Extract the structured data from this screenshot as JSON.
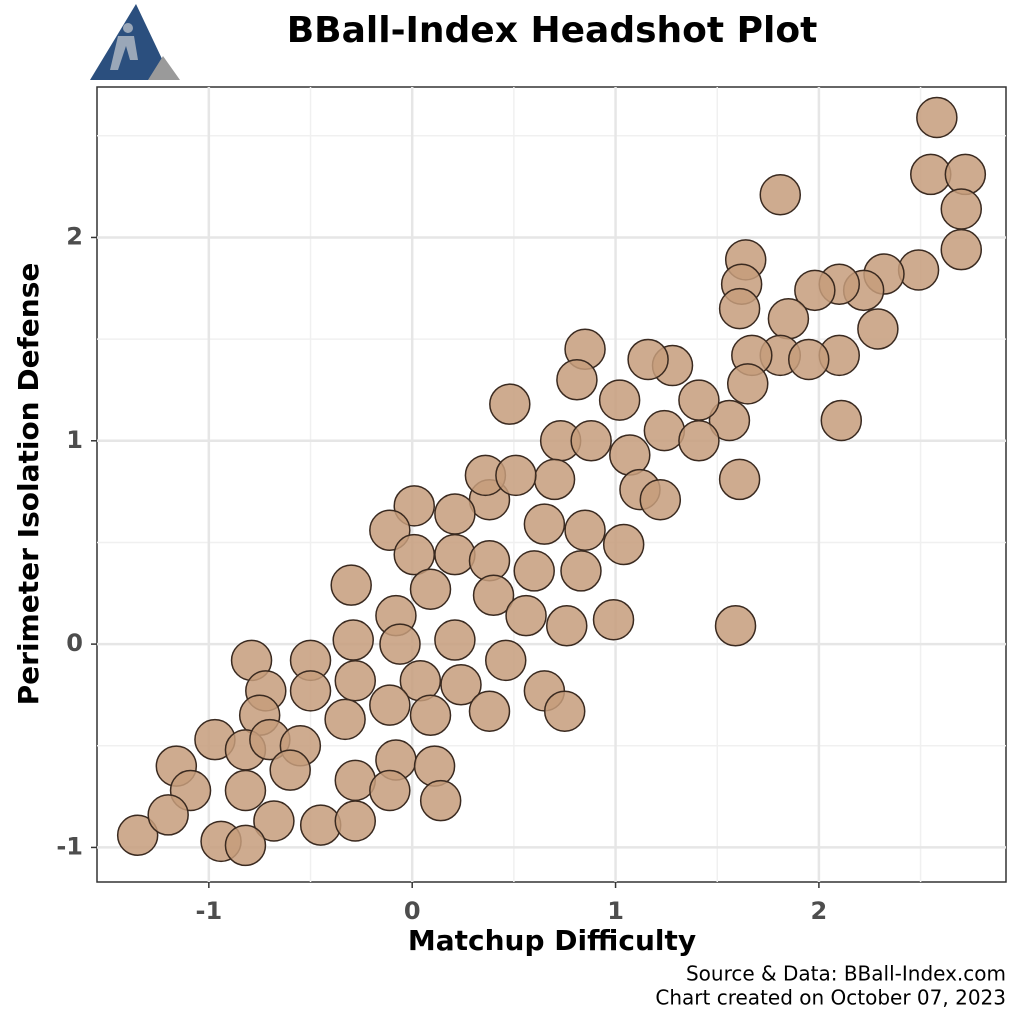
{
  "chart_data": {
    "type": "scatter",
    "title": "BBall-Index Headshot Plot",
    "x_label": "Matchup Difficulty",
    "y_label": "Perimeter Isolation Defense",
    "source": [
      "Source & Data: BBall-Index.com",
      "Chart created on October 07, 2023"
    ],
    "color": "#c69c7b",
    "xlim": [
      -1.55,
      2.92
    ],
    "ylim": [
      -1.17,
      2.74
    ],
    "xticks": [
      -1,
      0,
      1,
      2
    ],
    "yticks": [
      -1,
      0,
      1,
      2
    ],
    "xminor": [
      -0.5,
      0.5,
      1.5,
      2.5
    ],
    "yminor": [
      -0.5,
      0.5,
      1.5,
      2.5
    ],
    "grid": true,
    "x": [
      2.58,
      2.55,
      2.72,
      1.81,
      2.7,
      2.7,
      2.49,
      2.32,
      2.22,
      2.1,
      1.98,
      1.64,
      1.62,
      1.61,
      1.85,
      2.1,
      2.29,
      1.81,
      1.67,
      1.65,
      1.95,
      2.11,
      1.61,
      1.56,
      1.41,
      1.28,
      1.16,
      1.02,
      0.85,
      0.81,
      0.48,
      0.73,
      0.88,
      1.07,
      1.24,
      1.41,
      0.7,
      0.38,
      0.36,
      0.51,
      1.12,
      1.22,
      1.04,
      0.85,
      0.65,
      0.21,
      0.01,
      -0.11,
      0.01,
      -0.3,
      0.21,
      0.38,
      0.6,
      0.83,
      0.09,
      -0.08,
      0.4,
      0.56,
      0.76,
      0.99,
      1.59,
      0.21,
      -0.06,
      -0.29,
      -0.5,
      -0.79,
      -0.28,
      0.04,
      0.24,
      0.46,
      0.65,
      0.75,
      0.38,
      0.09,
      -0.11,
      -0.33,
      -0.5,
      -0.72,
      -0.75,
      -0.97,
      -0.82,
      -0.7,
      -0.55,
      -1.16,
      -1.09,
      -0.82,
      -0.6,
      -0.28,
      -0.08,
      0.11,
      0.14,
      -0.11,
      -0.45,
      -0.28,
      -0.68,
      -0.94,
      -0.82,
      -1.35,
      -1.2
    ],
    "values": [
      2.59,
      2.31,
      2.31,
      2.21,
      2.14,
      1.94,
      1.84,
      1.82,
      1.74,
      1.77,
      1.74,
      1.89,
      1.77,
      1.65,
      1.6,
      1.42,
      1.55,
      1.42,
      1.42,
      1.28,
      1.4,
      1.1,
      0.81,
      1.1,
      1.2,
      1.37,
      1.4,
      1.2,
      1.45,
      1.3,
      1.18,
      1.0,
      1.0,
      0.93,
      1.05,
      1.0,
      0.81,
      0.71,
      0.83,
      0.83,
      0.76,
      0.71,
      0.49,
      0.56,
      0.59,
      0.64,
      0.68,
      0.56,
      0.44,
      0.29,
      0.44,
      0.41,
      0.36,
      0.36,
      0.27,
      0.14,
      0.24,
      0.14,
      0.09,
      0.12,
      0.09,
      0.02,
      0.0,
      0.02,
      -0.08,
      -0.08,
      -0.18,
      -0.18,
      -0.2,
      -0.08,
      -0.23,
      -0.33,
      -0.33,
      -0.35,
      -0.3,
      -0.37,
      -0.23,
      -0.23,
      -0.35,
      -0.47,
      -0.52,
      -0.47,
      -0.5,
      -0.6,
      -0.72,
      -0.72,
      -0.62,
      -0.67,
      -0.57,
      -0.6,
      -0.77,
      -0.72,
      -0.89,
      -0.87,
      -0.87,
      -0.97,
      -0.99,
      -0.94,
      -0.84
    ]
  }
}
